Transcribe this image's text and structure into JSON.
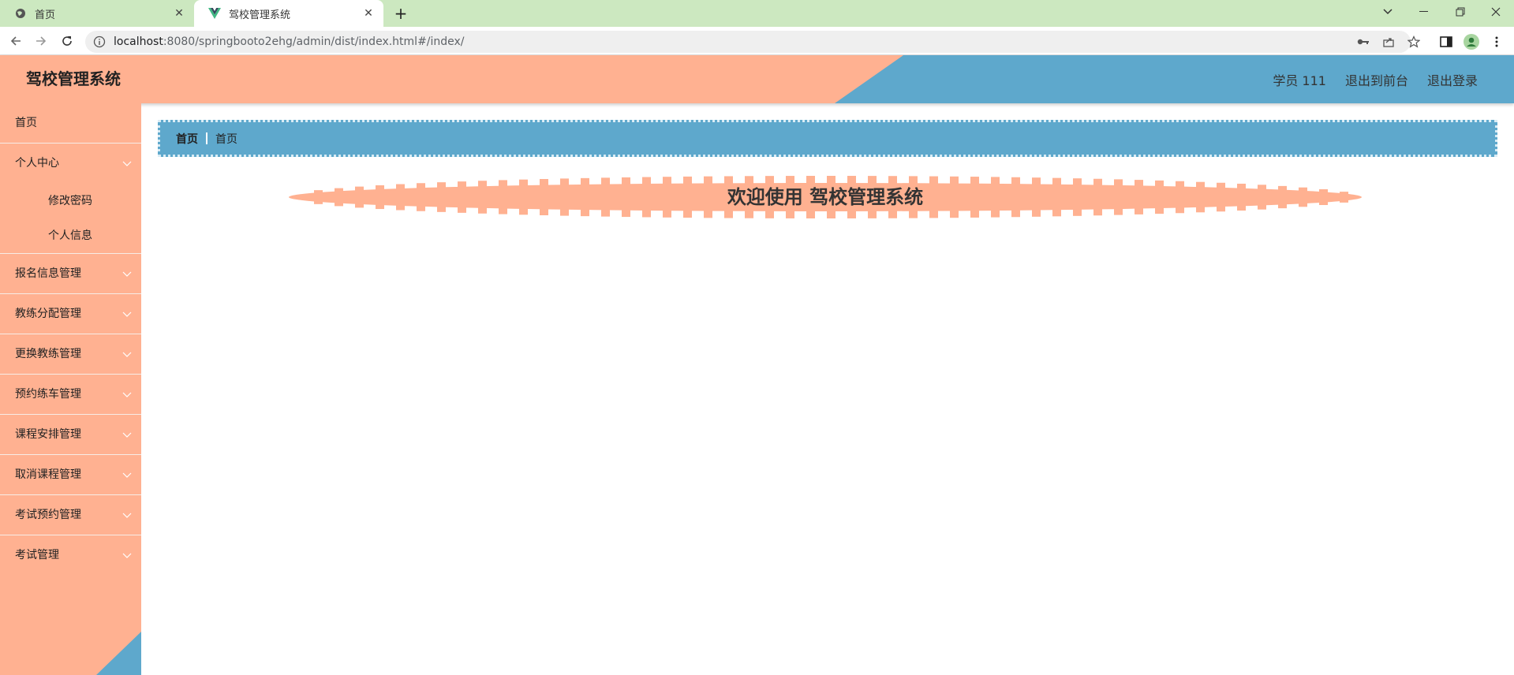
{
  "browser": {
    "tabs": [
      {
        "title": "首页",
        "icon": "globe-icon"
      },
      {
        "title": "驾校管理系统",
        "icon": "vue-logo-icon"
      }
    ],
    "url": {
      "host": "localhost",
      "rest": ":8080/springbooto2ehg/admin/dist/index.html#/index/"
    }
  },
  "header": {
    "title": "驾校管理系统",
    "user_label": "学员 111",
    "front_link": "退出到前台",
    "logout_link": "退出登录"
  },
  "sidebar": {
    "items": [
      {
        "label": "首页"
      },
      {
        "label": "个人中心",
        "children": [
          "修改密码",
          "个人信息"
        ]
      },
      {
        "label": "报名信息管理"
      },
      {
        "label": "教练分配管理"
      },
      {
        "label": "更换教练管理"
      },
      {
        "label": "预约练车管理"
      },
      {
        "label": "课程安排管理"
      },
      {
        "label": "取消课程管理"
      },
      {
        "label": "考试预约管理"
      },
      {
        "label": "考试管理"
      }
    ]
  },
  "breadcrumb": [
    "首页",
    "首页"
  ],
  "welcome": "欢迎使用 驾校管理系统",
  "colors": {
    "peach": "#ffb191",
    "blue": "#5ea8cc",
    "tabbar": "#cce8c0"
  }
}
